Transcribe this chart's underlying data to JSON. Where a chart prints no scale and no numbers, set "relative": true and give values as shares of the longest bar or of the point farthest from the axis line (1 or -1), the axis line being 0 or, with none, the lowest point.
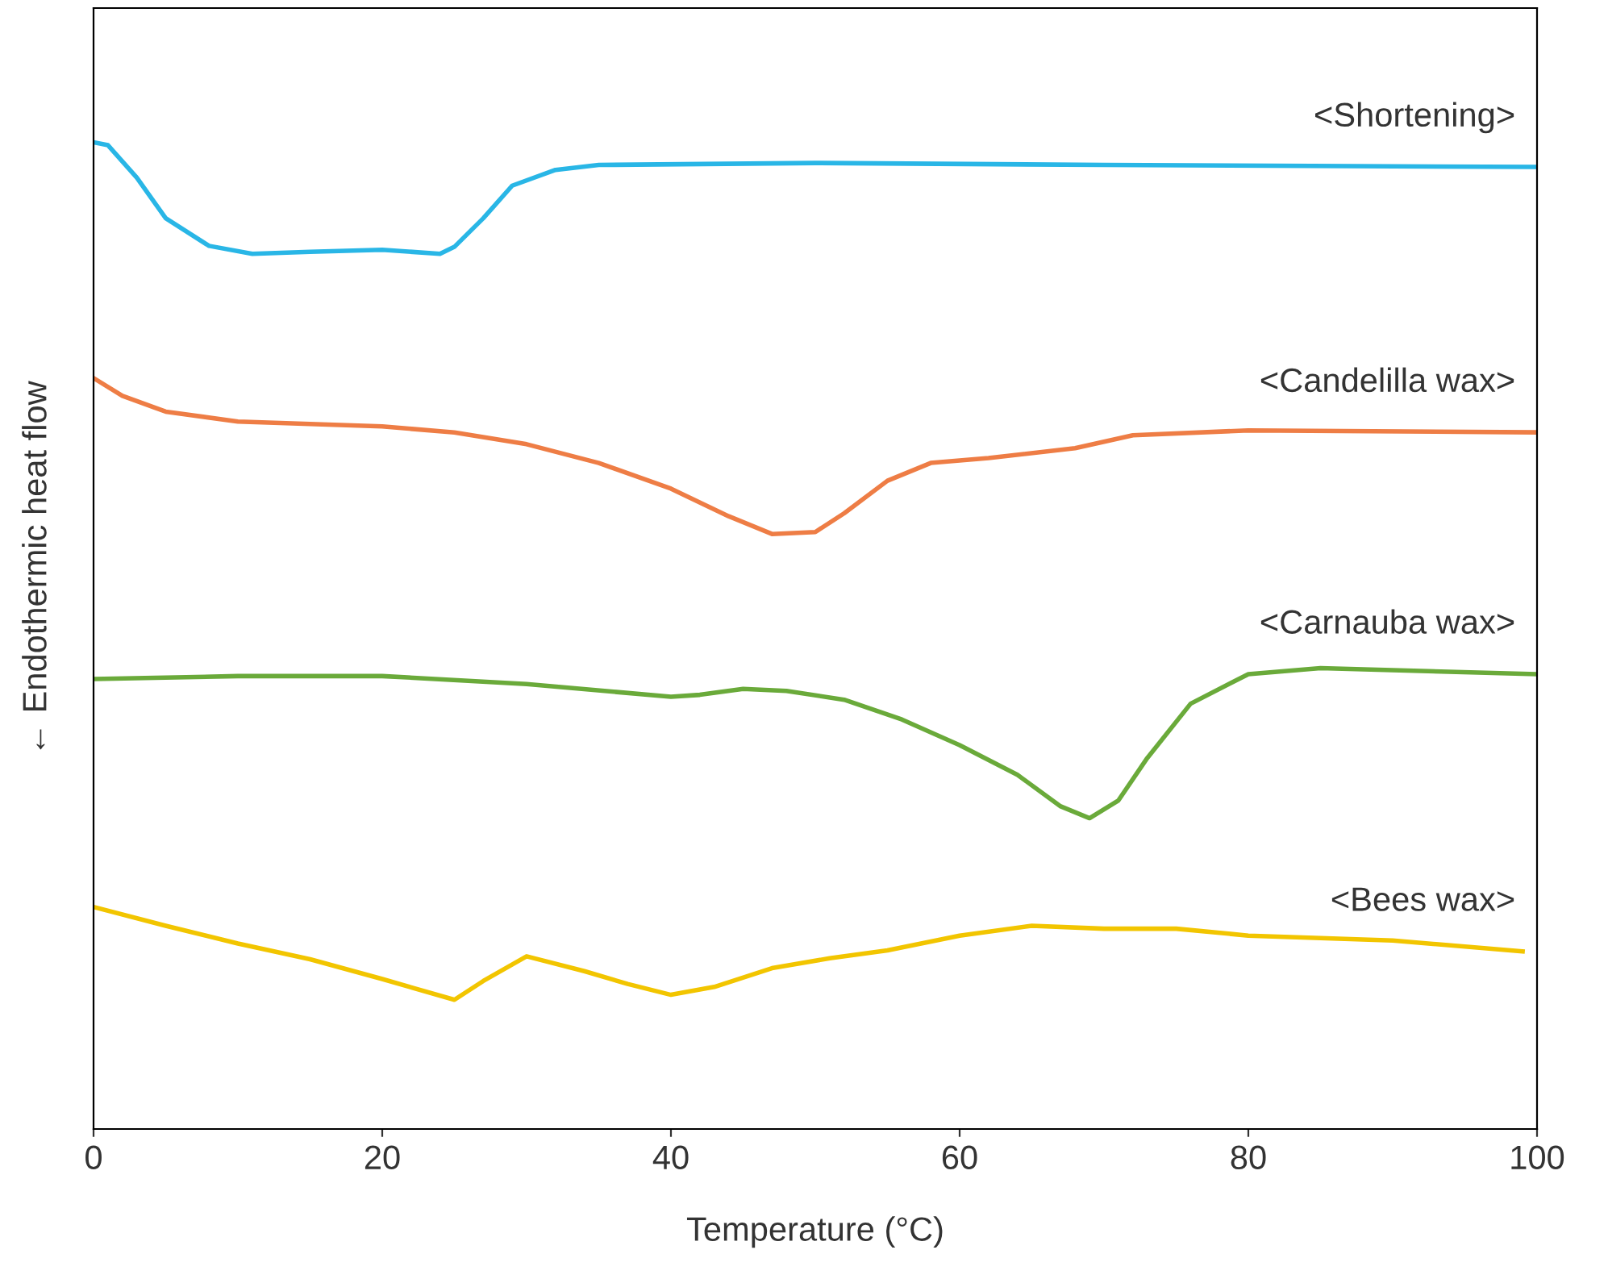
{
  "chart_data": {
    "type": "line",
    "relative": true,
    "xlabel": "Temperature (°C)",
    "ylabel": "← Endothermic heat flow",
    "xlim": [
      0,
      100
    ],
    "xticks": [
      0,
      20,
      40,
      60,
      80,
      100
    ],
    "grid": false,
    "legend": false,
    "tick_labels": "x",
    "series": [
      {
        "name": "<Shortening>",
        "color": "#29b6e6",
        "x": [
          0,
          1,
          3,
          5,
          8,
          11,
          15,
          20,
          24,
          25,
          27,
          29,
          32,
          35,
          50,
          70,
          100
        ],
        "values": [
          1.0,
          0.997,
          0.964,
          0.923,
          0.895,
          0.887,
          0.889,
          0.891,
          0.887,
          0.894,
          0.923,
          0.956,
          0.972,
          0.977,
          0.979,
          0.977,
          0.975
        ]
      },
      {
        "name": "<Candelilla wax>",
        "color": "#ee7d45",
        "x": [
          0,
          2,
          5,
          10,
          20,
          25,
          30,
          35,
          40,
          44,
          47,
          50,
          52,
          55,
          58,
          62,
          68,
          72,
          80,
          100
        ],
        "values": [
          0.761,
          0.743,
          0.727,
          0.717,
          0.712,
          0.706,
          0.694,
          0.675,
          0.649,
          0.621,
          0.603,
          0.605,
          0.624,
          0.657,
          0.675,
          0.68,
          0.69,
          0.703,
          0.708,
          0.706
        ]
      },
      {
        "name": "<Carnauba wax>",
        "color": "#6aaa3a",
        "x": [
          0,
          10,
          20,
          30,
          40,
          42,
          45,
          48,
          52,
          56,
          60,
          64,
          67,
          69,
          71,
          73,
          76,
          80,
          85,
          100
        ],
        "values": [
          0.456,
          0.459,
          0.459,
          0.451,
          0.438,
          0.44,
          0.446,
          0.444,
          0.435,
          0.415,
          0.389,
          0.359,
          0.327,
          0.315,
          0.333,
          0.376,
          0.431,
          0.461,
          0.467,
          0.461
        ]
      },
      {
        "name": "<Bees wax>",
        "color": "#f2c500",
        "x": [
          0,
          5,
          10,
          15,
          20,
          25,
          27,
          30,
          34,
          37,
          40,
          43,
          47,
          51,
          55,
          60,
          65,
          70,
          75,
          80,
          90,
          99
        ],
        "values": [
          0.225,
          0.206,
          0.188,
          0.172,
          0.152,
          0.131,
          0.15,
          0.175,
          0.16,
          0.147,
          0.136,
          0.144,
          0.163,
          0.173,
          0.181,
          0.196,
          0.206,
          0.203,
          0.203,
          0.196,
          0.191,
          0.18
        ]
      }
    ]
  }
}
